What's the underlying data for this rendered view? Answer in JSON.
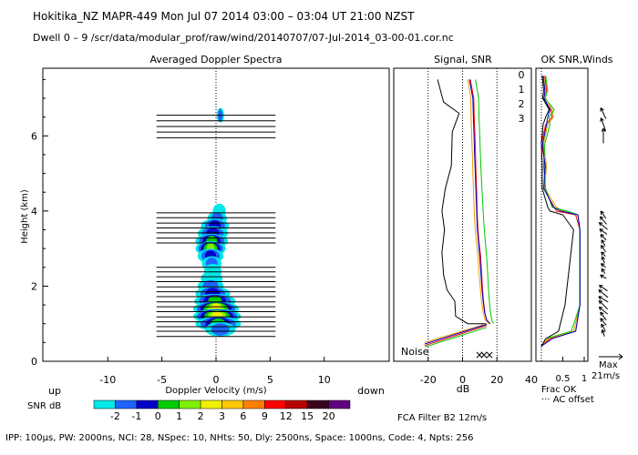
{
  "header": {
    "line1": "Hokitika_NZ   MAPR-449   Mon Jul 07 2014 03:00 – 03:04 UT 21:00 NZST",
    "line2": "Dwell   0 –  9   /scr/data/modular_prof/raw/wind/20140707/07-Jul-2014_03-00-01.cor.nc"
  },
  "footer": {
    "fca": "FCA Filter B2 12m/s",
    "params": "IPP: 100μs,  PW: 2000ns,  NCI:  28,  NSpec: 10,  NHts: 50,  Dly: 2500ns,  Space: 1000ns,  Code: 4,  Npts: 256"
  },
  "chart_data": [
    {
      "type": "heatmap",
      "title": "Averaged Doppler Spectra",
      "xlabel": "Doppler Velocity (m/s)",
      "ylabel": "Height (km)",
      "xlim": [
        -16,
        16
      ],
      "ylim": [
        0,
        7.8
      ],
      "xticks": [
        -10,
        -5,
        0,
        5,
        10
      ],
      "yticks": [
        0,
        2,
        4,
        6
      ],
      "x_extra_labels": {
        "left": "up",
        "right": "down"
      },
      "colorbar": {
        "label": "SNR dB",
        "levels": [
          "-2",
          "-1",
          "0",
          "1",
          "2",
          "3",
          "6",
          "9",
          "12",
          "15",
          "20"
        ],
        "colors": [
          "#00e8e8",
          "#1e64ff",
          "#0000c8",
          "#00cc00",
          "#80f000",
          "#f0f000",
          "#ffc800",
          "#ff8000",
          "#ff0000",
          "#b40000",
          "#3c001e",
          "#600080"
        ]
      },
      "blobs": [
        {
          "height": 6.55,
          "v": 0.4,
          "w": 0.35,
          "snr": -1
        },
        {
          "height": 4.0,
          "v": 0.3,
          "w": 0.6,
          "snr": -2
        },
        {
          "height": 3.8,
          "v": 0.1,
          "w": 0.9,
          "snr": -1
        },
        {
          "height": 3.6,
          "v": -0.1,
          "w": 1.3,
          "snr": 0
        },
        {
          "height": 3.4,
          "v": -0.3,
          "w": 1.4,
          "snr": 0
        },
        {
          "height": 3.2,
          "v": -0.4,
          "w": 1.5,
          "snr": 1
        },
        {
          "height": 3.0,
          "v": -0.5,
          "w": 1.4,
          "snr": 2
        },
        {
          "height": 2.8,
          "v": -0.5,
          "w": 1.2,
          "snr": 0
        },
        {
          "height": 2.6,
          "v": -0.4,
          "w": 0.9,
          "snr": -1
        },
        {
          "height": 2.4,
          "v": -0.3,
          "w": 0.8,
          "snr": -2
        },
        {
          "height": 2.2,
          "v": -0.4,
          "w": 1.0,
          "snr": -2
        },
        {
          "height": 2.0,
          "v": -0.5,
          "w": 1.2,
          "snr": -1
        },
        {
          "height": 1.8,
          "v": -0.3,
          "w": 1.6,
          "snr": 0
        },
        {
          "height": 1.6,
          "v": -0.1,
          "w": 1.9,
          "snr": 1
        },
        {
          "height": 1.4,
          "v": 0.0,
          "w": 2.1,
          "snr": 3
        },
        {
          "height": 1.2,
          "v": 0.1,
          "w": 2.2,
          "snr": 3
        },
        {
          "height": 1.0,
          "v": 0.2,
          "w": 2.1,
          "snr": 1
        },
        {
          "height": 0.85,
          "v": 0.4,
          "w": 1.4,
          "snr": -1
        }
      ],
      "hlines": [
        6.55,
        6.4,
        6.25,
        6.1,
        5.95,
        3.95,
        3.82,
        3.68,
        3.55,
        3.42,
        3.28,
        3.15,
        2.5,
        2.38,
        2.25,
        2.12,
        1.98,
        1.85,
        1.72,
        1.58,
        1.45,
        1.32,
        1.18,
        1.05,
        0.92,
        0.8,
        0.66
      ]
    },
    {
      "type": "line",
      "title": "Signal, SNR",
      "xlabel": "dB",
      "xlim": [
        -40,
        40
      ],
      "ylim": [
        0,
        7.8
      ],
      "xticks": [
        -20,
        0,
        20,
        40
      ],
      "gridlines": [
        -20,
        0,
        20
      ],
      "annotations": [
        "Noise"
      ],
      "series": [
        {
          "name": "0",
          "color": "#ff0000",
          "x": [
            4.5,
            6.5,
            6.8,
            7.2,
            7.5,
            7.8,
            8.2,
            8.5,
            8.8,
            9.5,
            10.5,
            11.0,
            11.5,
            12.2,
            13.0,
            14.0,
            16.0
          ],
          "y": [
            7.5,
            7.0,
            6.5,
            6.0,
            5.5,
            5.0,
            4.5,
            4.0,
            3.6,
            3.2,
            2.8,
            2.4,
            2.0,
            1.6,
            1.3,
            1.1,
            1.0
          ]
        },
        {
          "name": "1",
          "color": "#e8a000",
          "x": [
            3.0,
            4.8,
            5.0,
            5.3,
            5.7,
            6.0,
            6.4,
            6.8,
            7.2,
            8.0,
            9.0,
            9.5,
            10.2,
            11.0,
            12.0,
            13.2,
            15.5
          ],
          "y": [
            7.5,
            7.0,
            6.5,
            6.0,
            5.5,
            5.0,
            4.5,
            4.0,
            3.6,
            3.2,
            2.8,
            2.4,
            2.0,
            1.6,
            1.3,
            1.1,
            1.0
          ]
        },
        {
          "name": "2",
          "color": "#00c800",
          "x": [
            7.5,
            9.3,
            9.6,
            10.0,
            10.4,
            10.8,
            11.4,
            12.0,
            12.5,
            13.2,
            14.0,
            14.5,
            15.0,
            15.6,
            16.2,
            17.0,
            18.0
          ],
          "y": [
            7.5,
            7.0,
            6.5,
            6.0,
            5.5,
            5.0,
            4.5,
            4.0,
            3.6,
            3.2,
            2.8,
            2.4,
            2.0,
            1.6,
            1.3,
            1.1,
            1.0
          ]
        },
        {
          "name": "3",
          "color": "#0000c8",
          "x": [
            4.0,
            6.0,
            6.3,
            6.7,
            7.0,
            7.4,
            7.8,
            8.2,
            8.5,
            9.2,
            10.0,
            10.6,
            11.2,
            12.0,
            12.8,
            14.0,
            16.0
          ],
          "y": [
            7.5,
            7.0,
            6.5,
            6.0,
            5.5,
            5.0,
            4.5,
            4.0,
            3.6,
            3.2,
            2.8,
            2.4,
            2.0,
            1.6,
            1.3,
            1.1,
            1.0
          ]
        },
        {
          "name": "",
          "color": "#000000",
          "x": [
            -14.5,
            -11.0,
            -2.0,
            -6.0,
            -6.5,
            -10.0,
            -12.0,
            -10.5,
            -12.0,
            -11.0,
            -9.0,
            -4.5,
            -4.0,
            3.0,
            14.0
          ],
          "y": [
            7.5,
            6.9,
            6.6,
            6.1,
            5.2,
            4.6,
            4.0,
            3.5,
            2.9,
            2.3,
            1.9,
            1.6,
            1.2,
            1.0,
            1.0
          ]
        }
      ],
      "noise": [
        {
          "color": "#ff0000",
          "x": [
            -22.0,
            14.0
          ],
          "y": [
            0.42,
            0.95
          ]
        },
        {
          "color": "#e8a000",
          "x": [
            -22.0,
            14.0
          ],
          "y": [
            0.5,
            1.0
          ]
        },
        {
          "color": "#00c800",
          "x": [
            -22.0,
            14.0
          ],
          "y": [
            0.38,
            0.9
          ]
        },
        {
          "color": "#0000c8",
          "x": [
            -22.0,
            14.0
          ],
          "y": [
            0.46,
            0.98
          ]
        }
      ]
    },
    {
      "type": "line",
      "title": "OK SNR,Winds",
      "xlabel": "Frac OK",
      "xlim": [
        0,
        1
      ],
      "ylim": [
        0,
        7.8
      ],
      "xticks": [
        0.5,
        1
      ],
      "annotations": [
        "··· AC offset",
        "Max",
        "21m/s"
      ],
      "legend": [
        "0",
        "1",
        "2",
        "3"
      ],
      "series": [
        {
          "name": "0",
          "color": "#ff0000",
          "x": [
            0.08,
            0.12,
            0.05,
            0.22,
            0.25,
            0.1,
            0.0,
            0.1,
            0.05,
            0.3,
            0.35,
            0.8,
            0.9,
            0.9,
            0.8,
            0.2,
            0.0
          ],
          "y": [
            7.6,
            7.2,
            7.0,
            6.7,
            6.5,
            6.3,
            5.8,
            5.2,
            4.6,
            4.1,
            4.0,
            3.9,
            3.5,
            1.5,
            0.8,
            0.6,
            0.4
          ]
        },
        {
          "name": "1",
          "color": "#e8a000",
          "x": [
            0.05,
            0.1,
            0.1,
            0.25,
            0.28,
            0.15,
            0.05,
            0.12,
            0.08,
            0.35,
            0.5,
            0.85,
            0.9,
            0.9,
            0.75,
            0.15,
            0.0
          ],
          "y": [
            7.6,
            7.2,
            7.0,
            6.7,
            6.5,
            6.3,
            5.8,
            5.2,
            4.6,
            4.1,
            4.0,
            3.9,
            3.5,
            1.5,
            0.8,
            0.6,
            0.4
          ]
        },
        {
          "name": "2",
          "color": "#00c800",
          "x": [
            0.1,
            0.15,
            0.08,
            0.3,
            0.18,
            0.2,
            0.08,
            0.05,
            0.1,
            0.25,
            0.6,
            0.85,
            0.9,
            0.9,
            0.7,
            0.1,
            0.0
          ],
          "y": [
            7.6,
            7.2,
            7.0,
            6.7,
            6.5,
            6.3,
            5.8,
            5.2,
            4.6,
            4.1,
            4.0,
            3.9,
            3.5,
            1.5,
            0.8,
            0.6,
            0.4
          ]
        },
        {
          "name": "3",
          "color": "#0000c8",
          "x": [
            0.04,
            0.08,
            0.06,
            0.2,
            0.15,
            0.12,
            0.03,
            0.08,
            0.06,
            0.28,
            0.45,
            0.85,
            0.9,
            0.9,
            0.8,
            0.25,
            0.0
          ],
          "y": [
            7.6,
            7.2,
            7.0,
            6.7,
            6.5,
            6.3,
            5.8,
            5.2,
            4.6,
            4.1,
            4.0,
            3.9,
            3.5,
            1.5,
            0.8,
            0.6,
            0.4
          ]
        },
        {
          "name": "",
          "color": "#000000",
          "x": [
            0.02,
            0.05,
            0.03,
            0.18,
            0.1,
            0.04,
            0.0,
            0.02,
            0.02,
            0.15,
            0.2,
            0.5,
            0.75,
            0.55,
            0.4,
            0.1,
            0.0
          ],
          "y": [
            7.6,
            7.2,
            7.0,
            6.7,
            6.5,
            6.3,
            5.8,
            5.2,
            4.6,
            4.1,
            4.0,
            3.9,
            3.5,
            1.5,
            0.8,
            0.6,
            0.4
          ]
        }
      ],
      "winds": [
        {
          "height": 6.6,
          "dir": 205,
          "len": 0.6
        },
        {
          "height": 6.3,
          "dir": 200,
          "len": 0.7
        },
        {
          "height": 6.0,
          "dir": 180,
          "len": 0.75
        },
        {
          "height": 3.9,
          "dir": 215,
          "len": 0.45
        },
        {
          "height": 3.75,
          "dir": 220,
          "len": 0.5
        },
        {
          "height": 3.6,
          "dir": 230,
          "len": 0.55
        },
        {
          "height": 3.45,
          "dir": 235,
          "len": 0.45
        },
        {
          "height": 3.3,
          "dir": 225,
          "len": 0.4
        },
        {
          "height": 3.15,
          "dir": 210,
          "len": 0.35
        },
        {
          "height": 3.0,
          "dir": 215,
          "len": 0.4
        },
        {
          "height": 2.85,
          "dir": 225,
          "len": 0.3
        },
        {
          "height": 2.7,
          "dir": 200,
          "len": 0.35
        },
        {
          "height": 2.55,
          "dir": 230,
          "len": 0.3
        },
        {
          "height": 2.4,
          "dir": 215,
          "len": 0.3
        },
        {
          "height": 2.25,
          "dir": 240,
          "len": 0.35
        },
        {
          "height": 1.95,
          "dir": 235,
          "len": 0.5
        },
        {
          "height": 1.8,
          "dir": 230,
          "len": 0.6
        },
        {
          "height": 1.65,
          "dir": 240,
          "len": 0.55
        },
        {
          "height": 1.5,
          "dir": 225,
          "len": 0.6
        },
        {
          "height": 1.35,
          "dir": 230,
          "len": 0.55
        },
        {
          "height": 1.2,
          "dir": 215,
          "len": 0.5
        },
        {
          "height": 1.05,
          "dir": 220,
          "len": 0.45
        },
        {
          "height": 0.9,
          "dir": 210,
          "len": 0.4
        },
        {
          "height": 0.75,
          "dir": 200,
          "len": 0.35
        }
      ]
    }
  ]
}
